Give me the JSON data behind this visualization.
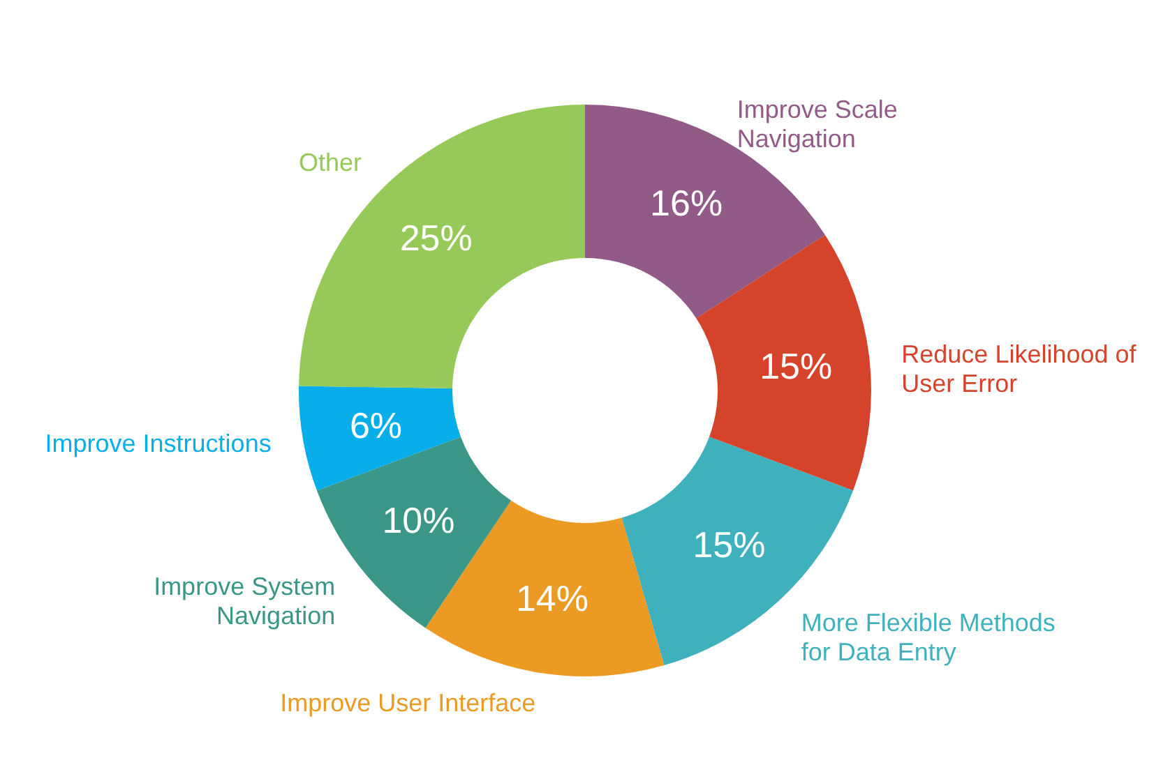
{
  "chart_data": {
    "type": "donut",
    "categories": [
      "Improve Scale Navigation",
      "Reduce Likelihood of User Error",
      "More Flexible Methods for Data Entry",
      "Improve User Interface",
      "Improve System Navigation",
      "Improve Instructions",
      "Other"
    ],
    "values": [
      16,
      15,
      15,
      14,
      10,
      6,
      25
    ],
    "value_labels": [
      "16%",
      "15%",
      "15%",
      "14%",
      "10%",
      "6%",
      "25%"
    ],
    "colors": [
      "#925a86",
      "#d5432a",
      "#3fb1bc",
      "#eb9a23",
      "#3a9687",
      "#08aeea",
      "#96c957"
    ]
  }
}
